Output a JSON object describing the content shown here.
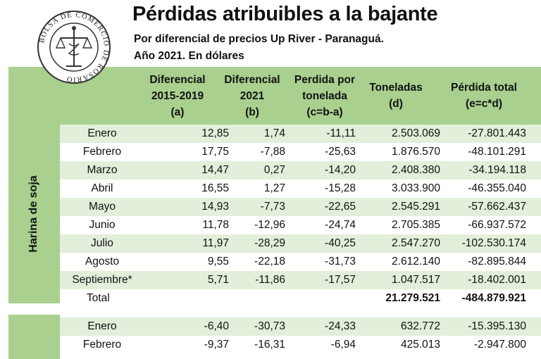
{
  "header": {
    "title": "Pérdidas atribuibles a la bajante",
    "subtitle": "Por diferencial de precios Up River - Paranaguá.",
    "subtitle2": "Año 2021. En dólares",
    "seal_text": "BOLSA DE COMERCIO DE ROSARIO"
  },
  "columns": [
    {
      "l1": "Diferencial",
      "l2": "2015-2019",
      "l3": "(a)"
    },
    {
      "l1": "Diferencial",
      "l2": "2021",
      "l3": "(b)"
    },
    {
      "l1": "Perdida por",
      "l2": "tonelada",
      "l3": "(c=b-a)"
    },
    {
      "l1": "Toneladas",
      "l2": "(d)",
      "l3": ""
    },
    {
      "l1": "Pérdida total",
      "l2": "(e=c*d)",
      "l3": ""
    }
  ],
  "section1": {
    "label": "Harina de soja",
    "rows": [
      {
        "mes": "Enero",
        "a": "12,85",
        "b": "1,74",
        "c": "-11,11",
        "d": "2.503.069",
        "e": "-27.801.443"
      },
      {
        "mes": "Febrero",
        "a": "17,75",
        "b": "-7,88",
        "c": "-25,63",
        "d": "1.876.570",
        "e": "-48.101.291"
      },
      {
        "mes": "Marzo",
        "a": "14,47",
        "b": "0,27",
        "c": "-14,20",
        "d": "2.408.380",
        "e": "-34.194.118"
      },
      {
        "mes": "Abril",
        "a": "16,55",
        "b": "1,27",
        "c": "-15,28",
        "d": "3.033.900",
        "e": "-46.355.040"
      },
      {
        "mes": "Mayo",
        "a": "14,93",
        "b": "-7,73",
        "c": "-22,65",
        "d": "2.545.291",
        "e": "-57.662.437"
      },
      {
        "mes": "Junio",
        "a": "11,78",
        "b": "-12,96",
        "c": "-24,74",
        "d": "2.705.385",
        "e": "-66.937.572"
      },
      {
        "mes": "Julio",
        "a": "11,97",
        "b": "-28,29",
        "c": "-40,25",
        "d": "2.547.270",
        "e": "-102.530.174"
      },
      {
        "mes": "Agosto",
        "a": "9,55",
        "b": "-22,18",
        "c": "-31,73",
        "d": "2.612.140",
        "e": "-82.895.844"
      },
      {
        "mes": "Septiembre*",
        "a": "5,71",
        "b": "-11,86",
        "c": "-17,57",
        "d": "1.047.517",
        "e": "-18.402.001"
      }
    ],
    "total": {
      "mes": "Total",
      "d": "21.279.521",
      "e": "-484.879.921"
    }
  },
  "section2": {
    "rows": [
      {
        "mes": "Enero",
        "a": "-6,40",
        "b": "-30,73",
        "c": "-24,33",
        "d": "632.772",
        "e": "-15.395.130"
      },
      {
        "mes": "Febrero",
        "a": "-9,37",
        "b": "-16,31",
        "c": "-6,94",
        "d": "425.013",
        "e": "-2.947.800"
      }
    ]
  }
}
